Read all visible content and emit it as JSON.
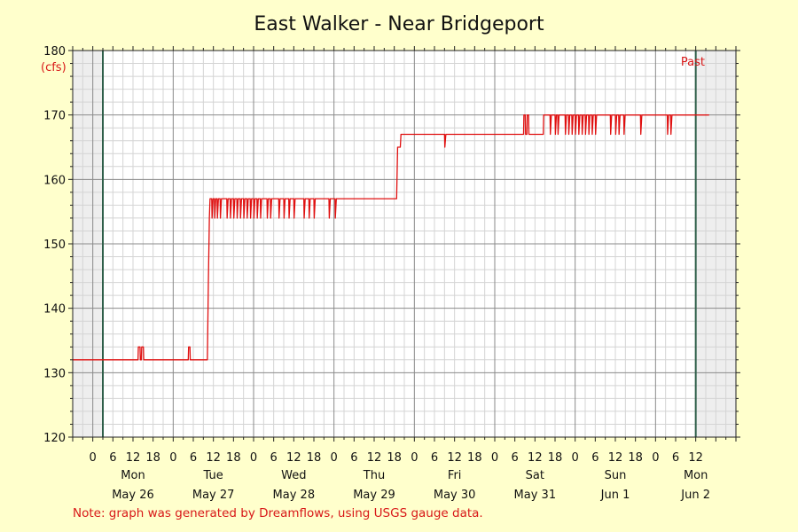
{
  "chart_data": {
    "type": "line",
    "title": "East Walker - Near Bridgeport",
    "y_unit_label": "(cfs)",
    "ylim": [
      120,
      180
    ],
    "y_ticks": [
      120,
      130,
      140,
      150,
      160,
      170,
      180
    ],
    "x_range_hours": [
      -6,
      192
    ],
    "x_hour_tick_labels": [
      {
        "h": 0,
        "label": "0"
      },
      {
        "h": 6,
        "label": "6"
      },
      {
        "h": 12,
        "label": "12"
      },
      {
        "h": 18,
        "label": "18"
      },
      {
        "h": 24,
        "label": "0"
      },
      {
        "h": 30,
        "label": "6"
      },
      {
        "h": 36,
        "label": "12"
      },
      {
        "h": 42,
        "label": "18"
      },
      {
        "h": 48,
        "label": "0"
      },
      {
        "h": 54,
        "label": "6"
      },
      {
        "h": 60,
        "label": "12"
      },
      {
        "h": 66,
        "label": "18"
      },
      {
        "h": 72,
        "label": "0"
      },
      {
        "h": 78,
        "label": "6"
      },
      {
        "h": 84,
        "label": "12"
      },
      {
        "h": 90,
        "label": "18"
      },
      {
        "h": 96,
        "label": "0"
      },
      {
        "h": 102,
        "label": "6"
      },
      {
        "h": 108,
        "label": "12"
      },
      {
        "h": 114,
        "label": "18"
      },
      {
        "h": 120,
        "label": "0"
      },
      {
        "h": 126,
        "label": "6"
      },
      {
        "h": 132,
        "label": "12"
      },
      {
        "h": 138,
        "label": "18"
      },
      {
        "h": 144,
        "label": "0"
      },
      {
        "h": 150,
        "label": "6"
      },
      {
        "h": 156,
        "label": "12"
      },
      {
        "h": 162,
        "label": "18"
      },
      {
        "h": 168,
        "label": "0"
      },
      {
        "h": 174,
        "label": "6"
      },
      {
        "h": 180,
        "label": "12"
      }
    ],
    "days": [
      {
        "h": 12,
        "weekday": "Mon",
        "date": "May 26"
      },
      {
        "h": 36,
        "weekday": "Tue",
        "date": "May 27"
      },
      {
        "h": 60,
        "weekday": "Wed",
        "date": "May 28"
      },
      {
        "h": 84,
        "weekday": "Thu",
        "date": "May 29"
      },
      {
        "h": 108,
        "weekday": "Fri",
        "date": "May 30"
      },
      {
        "h": 132,
        "weekday": "Sat",
        "date": "May 31"
      },
      {
        "h": 156,
        "weekday": "Sun",
        "date": "Jun 1"
      },
      {
        "h": 180,
        "weekday": "Mon",
        "date": "Jun 2"
      }
    ],
    "shaded_before_hour": 3,
    "shaded_after_hour": 180,
    "past_label": "Past",
    "series": [
      {
        "color": "#e01010",
        "points": [
          [
            -6,
            132
          ],
          [
            13.5,
            132
          ],
          [
            13.6,
            134
          ],
          [
            14.1,
            134
          ],
          [
            14.2,
            132
          ],
          [
            14.5,
            132
          ],
          [
            14.6,
            134
          ],
          [
            15.1,
            134
          ],
          [
            15.2,
            132
          ],
          [
            28.5,
            132
          ],
          [
            28.6,
            134
          ],
          [
            29.0,
            134
          ],
          [
            29.1,
            132
          ],
          [
            34.2,
            132
          ],
          [
            34.5,
            144
          ],
          [
            34.8,
            154
          ],
          [
            35.0,
            157
          ],
          [
            35.5,
            157
          ],
          [
            35.6,
            154
          ],
          [
            35.9,
            157
          ],
          [
            36.3,
            157
          ],
          [
            36.4,
            154
          ],
          [
            36.7,
            157
          ],
          [
            37.1,
            157
          ],
          [
            37.2,
            154
          ],
          [
            37.5,
            157
          ],
          [
            38.0,
            157
          ],
          [
            38.1,
            154
          ],
          [
            38.4,
            157
          ],
          [
            40.0,
            157
          ],
          [
            40.1,
            154
          ],
          [
            40.4,
            157
          ],
          [
            41.0,
            157
          ],
          [
            41.1,
            154
          ],
          [
            41.4,
            157
          ],
          [
            42.0,
            157
          ],
          [
            42.1,
            154
          ],
          [
            42.4,
            157
          ],
          [
            43.0,
            157
          ],
          [
            43.1,
            154
          ],
          [
            43.4,
            157
          ],
          [
            44.0,
            157
          ],
          [
            44.1,
            154
          ],
          [
            44.4,
            157
          ],
          [
            45.0,
            157
          ],
          [
            45.1,
            154
          ],
          [
            45.4,
            157
          ],
          [
            46.0,
            157
          ],
          [
            46.1,
            154
          ],
          [
            46.4,
            157
          ],
          [
            47.0,
            157
          ],
          [
            47.1,
            154
          ],
          [
            47.4,
            157
          ],
          [
            48.0,
            157
          ],
          [
            48.1,
            154
          ],
          [
            48.4,
            157
          ],
          [
            49.0,
            157
          ],
          [
            49.1,
            154
          ],
          [
            49.4,
            157
          ],
          [
            50.0,
            157
          ],
          [
            50.1,
            154
          ],
          [
            50.4,
            157
          ],
          [
            52.0,
            157
          ],
          [
            52.1,
            154
          ],
          [
            52.4,
            157
          ],
          [
            53.0,
            157
          ],
          [
            53.1,
            154
          ],
          [
            53.4,
            157
          ],
          [
            55.5,
            157
          ],
          [
            55.6,
            154
          ],
          [
            55.9,
            157
          ],
          [
            57.0,
            157
          ],
          [
            57.1,
            154
          ],
          [
            57.4,
            157
          ],
          [
            58.5,
            157
          ],
          [
            58.6,
            154
          ],
          [
            58.9,
            157
          ],
          [
            60.0,
            157
          ],
          [
            60.1,
            154
          ],
          [
            60.4,
            157
          ],
          [
            63.0,
            157
          ],
          [
            63.1,
            154
          ],
          [
            63.4,
            157
          ],
          [
            64.5,
            157
          ],
          [
            64.6,
            154
          ],
          [
            64.9,
            157
          ],
          [
            66.0,
            157
          ],
          [
            66.1,
            154
          ],
          [
            66.4,
            157
          ],
          [
            70.5,
            157
          ],
          [
            70.6,
            154
          ],
          [
            70.9,
            157
          ],
          [
            72.3,
            157
          ],
          [
            72.4,
            154
          ],
          [
            72.7,
            157
          ],
          [
            90.7,
            157
          ],
          [
            91.0,
            165
          ],
          [
            91.8,
            165
          ],
          [
            92.0,
            167
          ],
          [
            105.0,
            167
          ],
          [
            105.1,
            165
          ],
          [
            105.4,
            167
          ],
          [
            128.6,
            167
          ],
          [
            128.7,
            170
          ],
          [
            129.1,
            170
          ],
          [
            129.2,
            167
          ],
          [
            129.6,
            167
          ],
          [
            129.7,
            170
          ],
          [
            130.1,
            170
          ],
          [
            130.2,
            167
          ],
          [
            134.5,
            167
          ],
          [
            134.6,
            170
          ],
          [
            136.5,
            170
          ],
          [
            136.6,
            167
          ],
          [
            136.9,
            170
          ],
          [
            138.0,
            170
          ],
          [
            138.1,
            167
          ],
          [
            138.4,
            170
          ],
          [
            138.8,
            170
          ],
          [
            138.9,
            167
          ],
          [
            139.2,
            170
          ],
          [
            141.0,
            170
          ],
          [
            141.1,
            167
          ],
          [
            141.4,
            170
          ],
          [
            142.0,
            170
          ],
          [
            142.1,
            167
          ],
          [
            142.4,
            170
          ],
          [
            143.0,
            170
          ],
          [
            143.1,
            167
          ],
          [
            143.4,
            170
          ],
          [
            144.0,
            170
          ],
          [
            144.1,
            167
          ],
          [
            144.4,
            170
          ],
          [
            145.0,
            170
          ],
          [
            145.1,
            167
          ],
          [
            145.4,
            170
          ],
          [
            146.0,
            170
          ],
          [
            146.1,
            167
          ],
          [
            146.4,
            170
          ],
          [
            147.0,
            170
          ],
          [
            147.1,
            167
          ],
          [
            147.4,
            170
          ],
          [
            148.0,
            170
          ],
          [
            148.1,
            167
          ],
          [
            148.4,
            170
          ],
          [
            149.0,
            170
          ],
          [
            149.1,
            167
          ],
          [
            149.4,
            170
          ],
          [
            150.0,
            170
          ],
          [
            150.1,
            167
          ],
          [
            150.4,
            170
          ],
          [
            154.5,
            170
          ],
          [
            154.6,
            167
          ],
          [
            154.9,
            170
          ],
          [
            156.0,
            170
          ],
          [
            156.1,
            167
          ],
          [
            156.4,
            170
          ],
          [
            157.0,
            170
          ],
          [
            157.1,
            167
          ],
          [
            157.4,
            170
          ],
          [
            158.5,
            170
          ],
          [
            158.6,
            167
          ],
          [
            158.9,
            170
          ],
          [
            163.5,
            170
          ],
          [
            163.6,
            167
          ],
          [
            163.9,
            170
          ],
          [
            171.5,
            170
          ],
          [
            171.6,
            167
          ],
          [
            171.9,
            170
          ],
          [
            172.5,
            170
          ],
          [
            172.6,
            167
          ],
          [
            172.9,
            170
          ],
          [
            184,
            170
          ]
        ]
      }
    ]
  },
  "note": "Note: graph was generated by Dreamflows, using USGS gauge data."
}
